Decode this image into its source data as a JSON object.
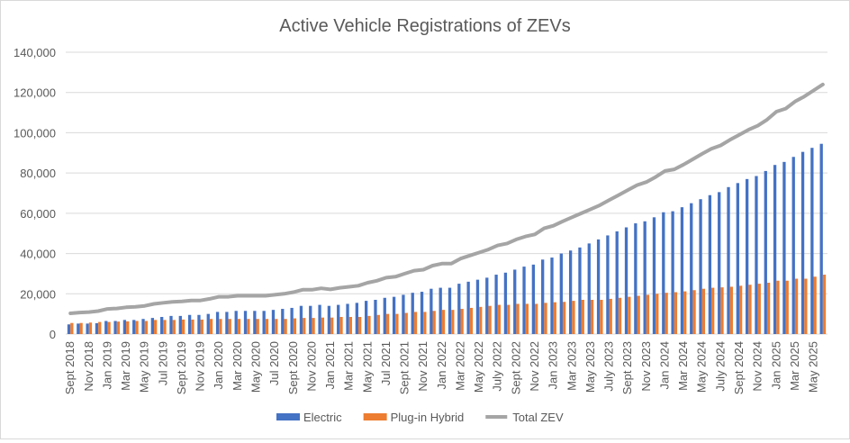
{
  "chart_data": {
    "type": "bar",
    "title": "Active Vehicle Registrations of ZEVs",
    "xlabel": "",
    "ylabel": "",
    "ylim": [
      0,
      140000
    ],
    "y_ticks": [
      0,
      20000,
      40000,
      60000,
      80000,
      100000,
      120000,
      140000
    ],
    "y_tick_labels": [
      "0",
      "20,000",
      "40,000",
      "60,000",
      "80,000",
      "100,000",
      "120,000",
      "140,000"
    ],
    "x_frequency": "monthly, Sept 2018 to Jun 2025",
    "x_tick_labels": [
      "Sept 2018",
      "Nov 2018",
      "Jan 2019",
      "Mar 2019",
      "May 2019",
      "Jul 2019",
      "Sept 2019",
      "Nov 2019",
      "Jan 2020",
      "Mar 2020",
      "May 2020",
      "Jul 2020",
      "Sept 2020",
      "Nov 2020",
      "Jan 2021",
      "Mar 2021",
      "May 2021",
      "Jul 2021",
      "Sept 2021",
      "Nov 2021",
      "Jan 2022",
      "Mar 2022",
      "May 2022",
      "July 2022",
      "Sept 2022",
      "Nov 2022",
      "Jan 2023",
      "Mar 2023",
      "May 2023",
      "July 2023",
      "Sept 2023",
      "Nov 2023",
      "Jan 2024",
      "Mar 2024",
      "May 2024",
      "July 2024",
      "Sept 2024",
      "Nov 2024",
      "Jan 2025",
      "Mar 2025",
      "May 2025"
    ],
    "grid": true,
    "legend_position": "bottom",
    "series": [
      {
        "name": "Electric",
        "type": "bar",
        "color": "#4472c4",
        "values": [
          4800,
          5200,
          5200,
          5400,
          6500,
          6500,
          7000,
          7000,
          7500,
          8000,
          8500,
          9000,
          9000,
          9500,
          9500,
          10000,
          11000,
          11000,
          11500,
          11500,
          11500,
          11500,
          12000,
          12500,
          13000,
          14000,
          14000,
          14500,
          14000,
          14500,
          15000,
          15500,
          16500,
          17000,
          18000,
          18500,
          19500,
          20500,
          21000,
          22500,
          23000,
          23000,
          25000,
          26000,
          27000,
          28000,
          29500,
          30500,
          32000,
          33500,
          34500,
          37000,
          38000,
          40000,
          41500,
          43000,
          45000,
          47000,
          49000,
          51000,
          53000,
          55000,
          56000,
          58000,
          60500,
          61000,
          63000,
          65000,
          67000,
          69000,
          70500,
          73000,
          75000,
          77000,
          78500,
          81000,
          84000,
          85500,
          88000,
          90500,
          92500,
          94500
        ]
      },
      {
        "name": "Plug-in Hybrid",
        "type": "bar",
        "color": "#ed7d31",
        "values": [
          5500,
          5500,
          5700,
          6000,
          6000,
          6200,
          6300,
          6500,
          6500,
          7000,
          7000,
          7000,
          7200,
          7200,
          7200,
          7500,
          7500,
          7500,
          7500,
          7500,
          7500,
          7500,
          7500,
          7500,
          7800,
          8000,
          8000,
          8200,
          8200,
          8500,
          8500,
          8500,
          9000,
          9500,
          10000,
          10000,
          10500,
          11000,
          11000,
          11500,
          12000,
          12000,
          12500,
          13000,
          13500,
          14000,
          14500,
          14500,
          15000,
          15000,
          15000,
          15500,
          15800,
          16000,
          16500,
          17000,
          17000,
          17000,
          17500,
          18000,
          18500,
          19000,
          19500,
          20000,
          20500,
          20800,
          21200,
          21800,
          22500,
          23000,
          23200,
          23500,
          24000,
          24500,
          25000,
          25500,
          26500,
          26500,
          27500,
          27500,
          28500,
          29500
        ]
      },
      {
        "name": "Total ZEV",
        "type": "line",
        "color": "#a5a5a5",
        "values": [
          10300,
          10700,
          10900,
          11400,
          12500,
          12700,
          13300,
          13500,
          14000,
          15000,
          15500,
          16000,
          16200,
          16700,
          16700,
          17500,
          18500,
          18500,
          19000,
          19000,
          19000,
          19000,
          19500,
          20000,
          20800,
          22000,
          22000,
          22700,
          22200,
          23000,
          23500,
          24000,
          25500,
          26500,
          28000,
          28500,
          30000,
          31500,
          32000,
          34000,
          35000,
          35000,
          37500,
          39000,
          40500,
          42000,
          44000,
          45000,
          47000,
          48500,
          49500,
          52500,
          53800,
          56000,
          58000,
          60000,
          62000,
          64000,
          66500,
          69000,
          71500,
          74000,
          75500,
          78000,
          81000,
          81800,
          84200,
          86800,
          89500,
          92000,
          93700,
          96500,
          99000,
          101500,
          103500,
          106500,
          110500,
          112000,
          115500,
          118000,
          121000,
          124000
        ]
      }
    ]
  }
}
